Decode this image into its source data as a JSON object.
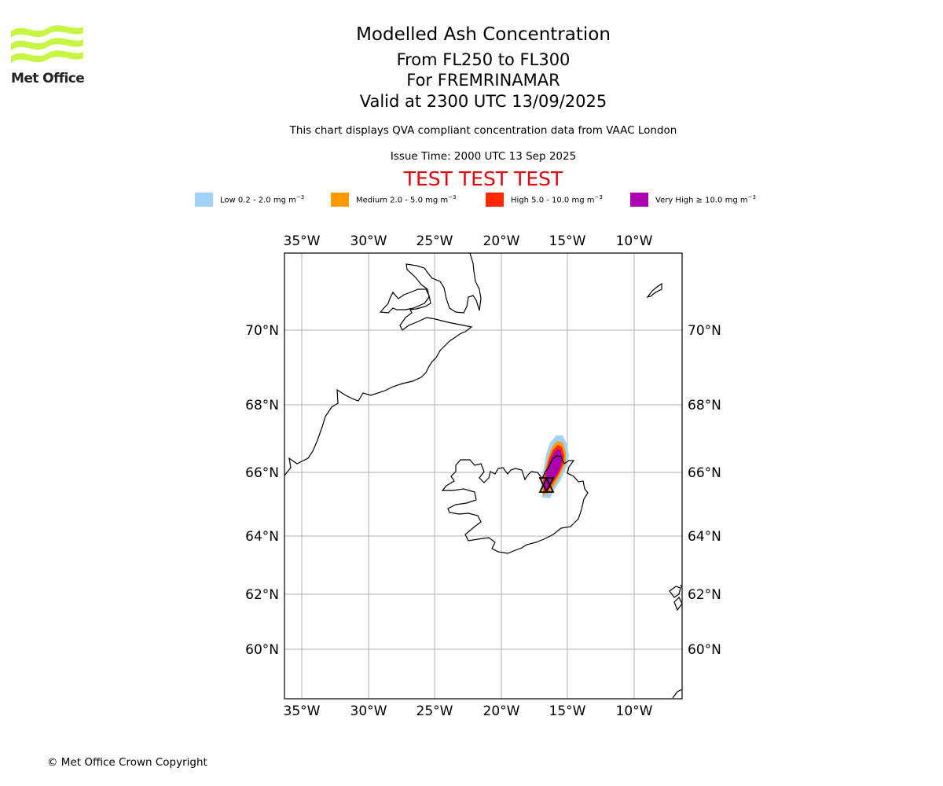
{
  "logo": {
    "text": "Met Office",
    "icon": "met-office-waves-icon",
    "color": "#c6f542"
  },
  "titles": {
    "main": "Modelled Ash Concentration",
    "levels": "From FL250 to FL300",
    "volcano": "For FREMRINAMAR",
    "valid": "Valid at 2300 UTC 13/09/2025",
    "description": "This chart displays QVA compliant concentration data from VAAC London",
    "issue_time": "Issue Time: 2000 UTC 13 Sep 2025",
    "test_banner": "TEST TEST TEST"
  },
  "legend": [
    {
      "label": "Low 0.2 - 2.0 mg m",
      "exponent": "−3",
      "color": "#a0d2fa"
    },
    {
      "label": "Medium 2.0 - 5.0 mg m",
      "exponent": "−3",
      "color": "#ff9900"
    },
    {
      "label": "High 5.0 - 10.0 mg m",
      "exponent": "−3",
      "color": "#ff2800"
    },
    {
      "label": "Very High ≥ 10.0 mg m",
      "exponent": "−3",
      "color": "#ab00b0"
    }
  ],
  "map": {
    "lon_ticks": [
      "35°W",
      "30°W",
      "25°W",
      "20°W",
      "15°W",
      "10°W"
    ],
    "lat_ticks": [
      "70°N",
      "68°N",
      "66°N",
      "64°N",
      "62°N",
      "60°N"
    ],
    "grid": true,
    "volcano_marker": "hourglass-triangle-icon"
  },
  "copyright": "© Met Office Crown Copyright"
}
